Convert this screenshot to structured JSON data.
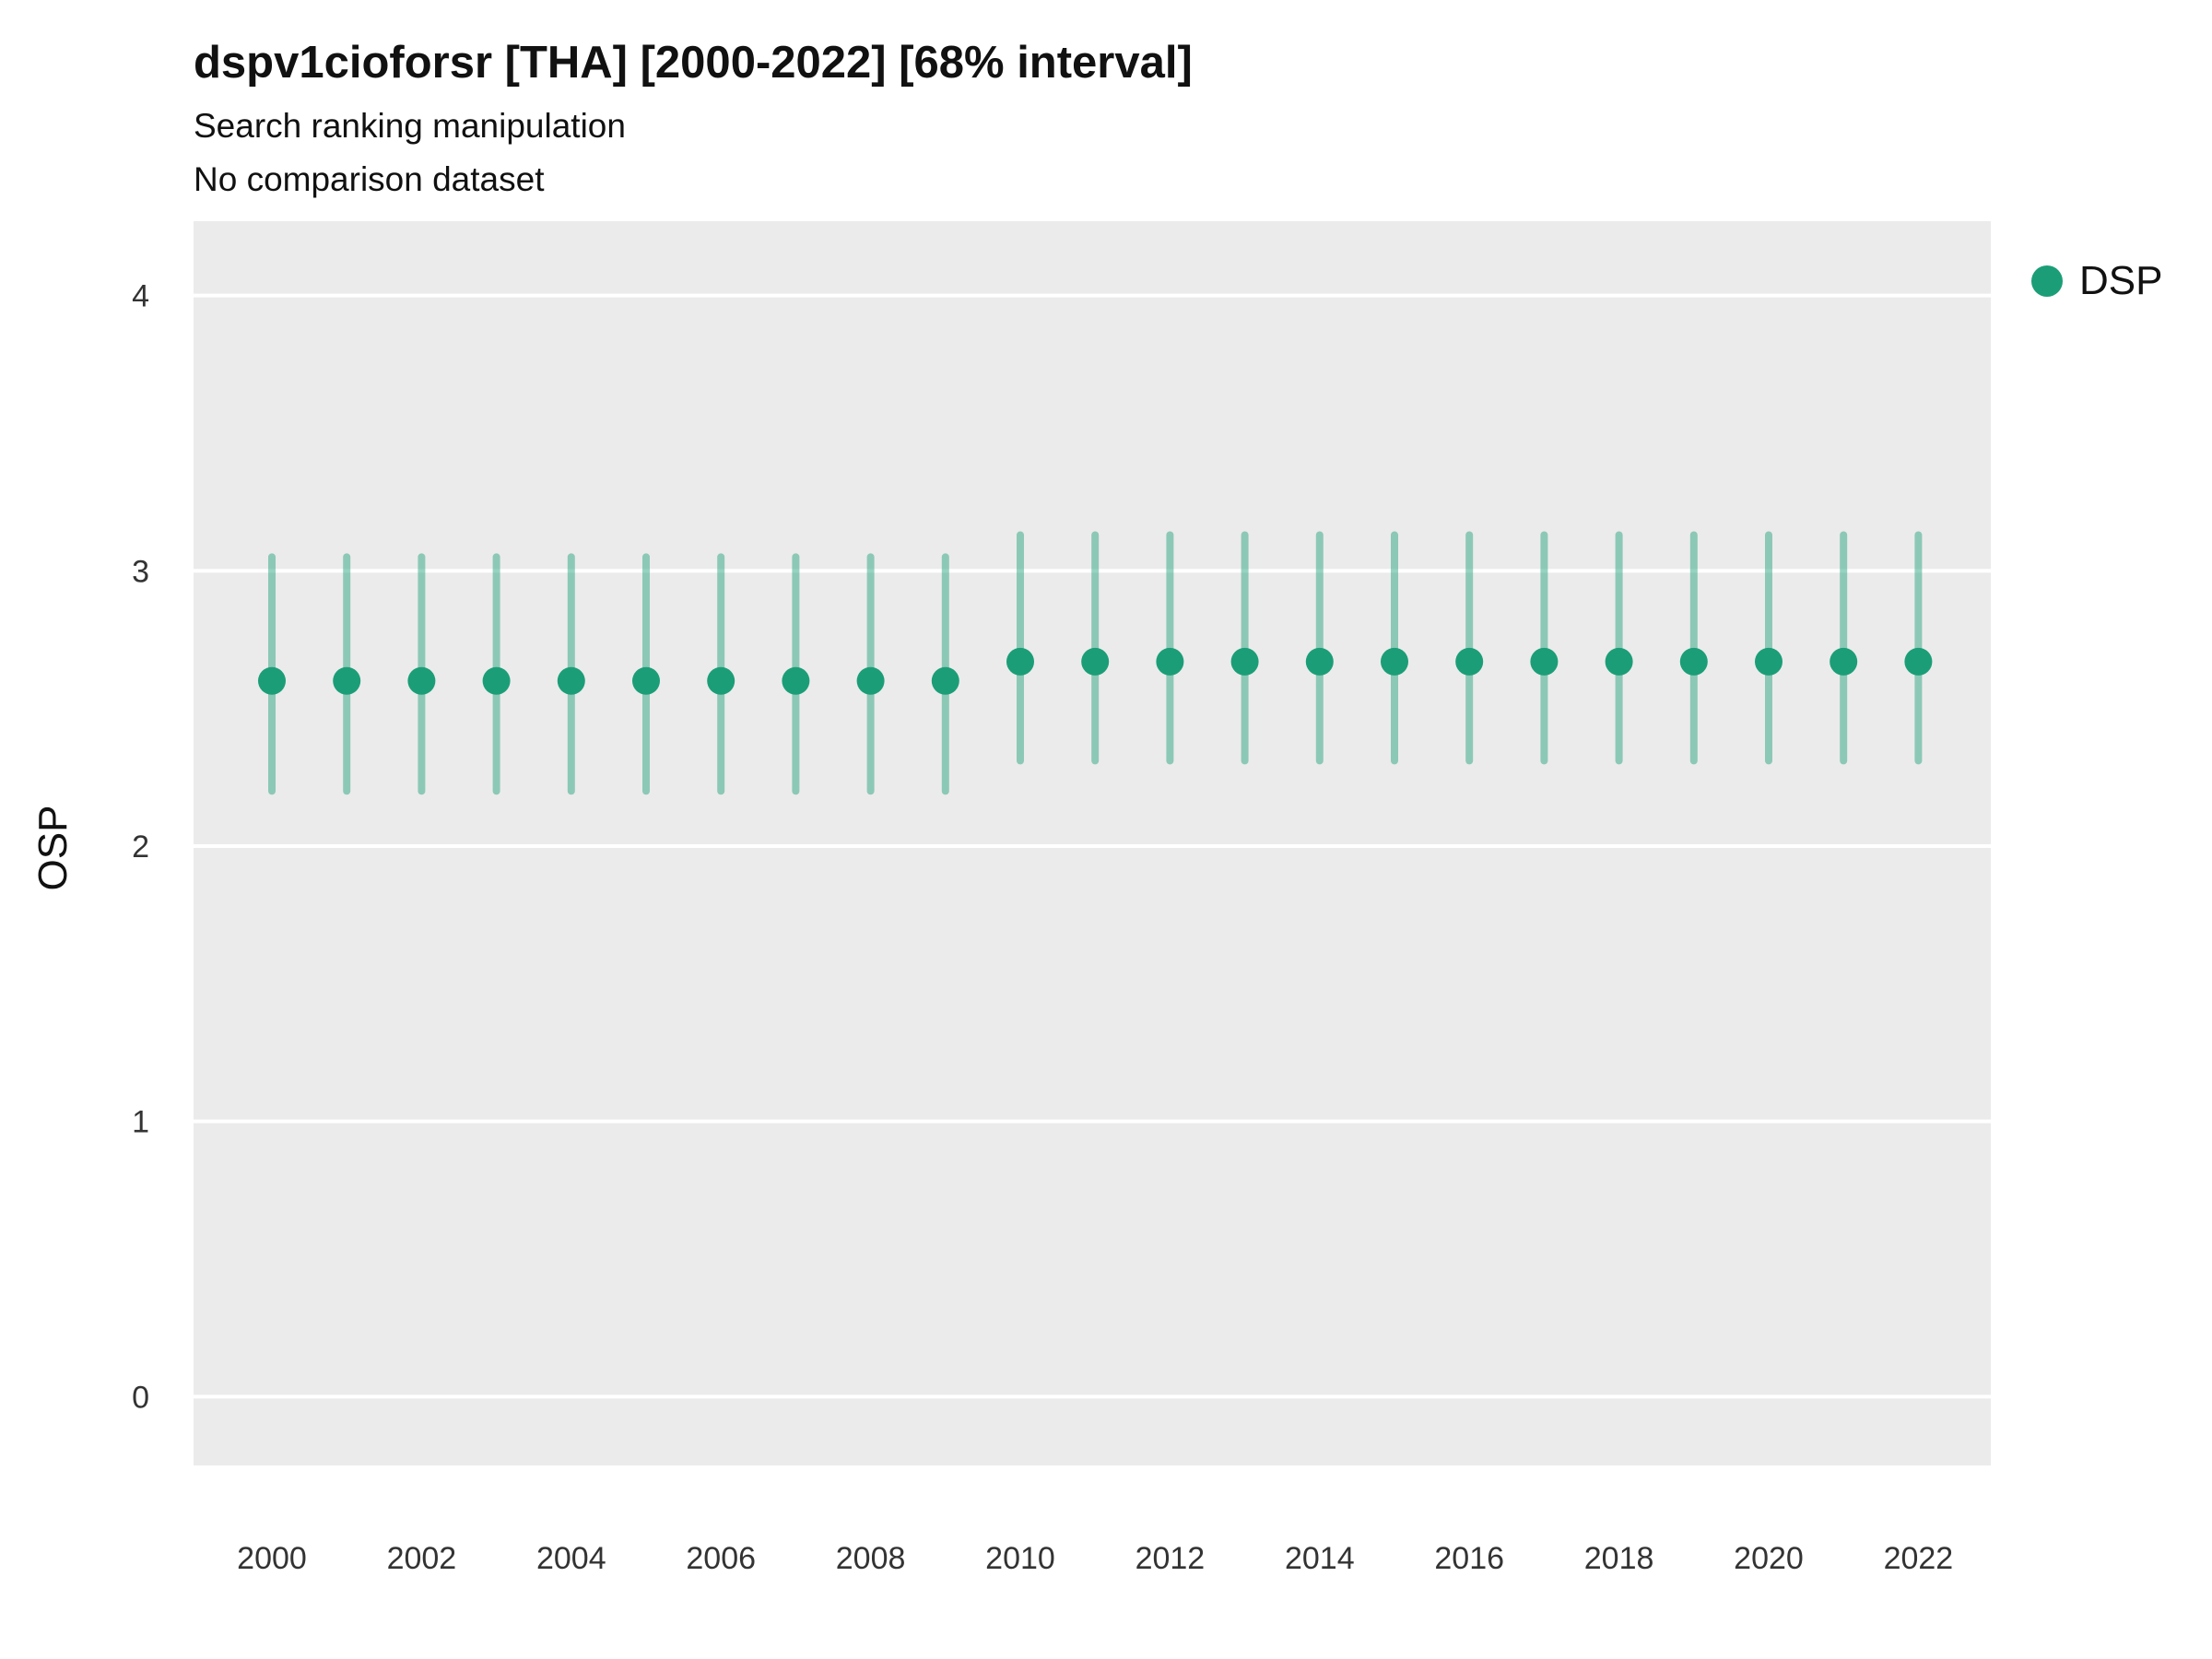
{
  "header": {
    "title": "dspv1cioforsr [THA] [2000-2022] [68% interval]",
    "subtitle1": "Search ranking manipulation",
    "subtitle2": "No comparison dataset"
  },
  "legend": {
    "label": "DSP",
    "color": "#1b9e77"
  },
  "axes": {
    "y_label": "OSP",
    "y_ticks": [
      4,
      3,
      2,
      1,
      0
    ],
    "x_ticks": [
      2000,
      2002,
      2004,
      2006,
      2008,
      2010,
      2012,
      2014,
      2016,
      2018,
      2020,
      2022
    ]
  },
  "colors": {
    "plot_background": "#ebebeb",
    "gridline": "#ffffff",
    "tick_label": "#333333",
    "point": "#1b9e77"
  },
  "chart_data": {
    "type": "scatter",
    "subtype": "pointrange",
    "title": "dspv1cioforsr [THA] [2000-2022] [68% interval]",
    "subtitle": "Search ranking manipulation",
    "note": "No comparison dataset",
    "interval": "68%",
    "xlabel": "",
    "ylabel": "OSP",
    "ylim": [
      -0.25,
      4.27
    ],
    "xlim": [
      1999,
      2023
    ],
    "grid": "horizontal-major",
    "legend_position": "right-top",
    "series": [
      {
        "name": "DSP",
        "color": "#1b9e77",
        "x": [
          2000,
          2001,
          2002,
          2003,
          2004,
          2005,
          2006,
          2007,
          2008,
          2009,
          2010,
          2011,
          2012,
          2013,
          2014,
          2015,
          2016,
          2017,
          2018,
          2019,
          2020,
          2021,
          2022
        ],
        "y": [
          2.6,
          2.6,
          2.6,
          2.6,
          2.6,
          2.6,
          2.6,
          2.6,
          2.6,
          2.6,
          2.67,
          2.67,
          2.67,
          2.67,
          2.67,
          2.67,
          2.67,
          2.67,
          2.67,
          2.67,
          2.67,
          2.67,
          2.67
        ],
        "lower": [
          2.2,
          2.2,
          2.2,
          2.2,
          2.2,
          2.2,
          2.2,
          2.2,
          2.2,
          2.2,
          2.31,
          2.31,
          2.31,
          2.31,
          2.31,
          2.31,
          2.31,
          2.31,
          2.31,
          2.31,
          2.31,
          2.31,
          2.31
        ],
        "upper": [
          3.05,
          3.05,
          3.05,
          3.05,
          3.05,
          3.05,
          3.05,
          3.05,
          3.05,
          3.05,
          3.13,
          3.13,
          3.13,
          3.13,
          3.13,
          3.13,
          3.13,
          3.13,
          3.13,
          3.13,
          3.13,
          3.13,
          3.13
        ]
      }
    ]
  }
}
